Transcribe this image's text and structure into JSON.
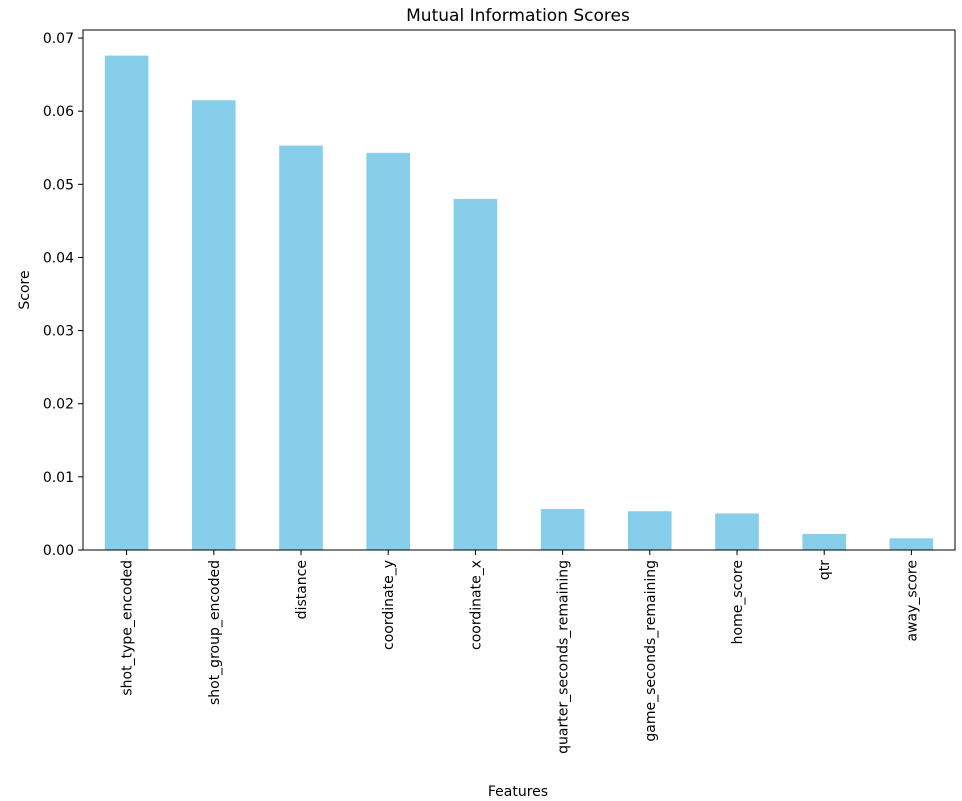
{
  "chart_data": {
    "type": "bar",
    "title": "Mutual Information Scores",
    "xlabel": "Features",
    "ylabel": "Score",
    "categories": [
      "shot_type_encoded",
      "shot_group_encoded",
      "distance",
      "coordinate_y",
      "coordinate_x",
      "quarter_seconds_remaining",
      "game_seconds_remaining",
      "home_score",
      "qtr",
      "away_score"
    ],
    "values": [
      0.0676,
      0.0615,
      0.0553,
      0.0543,
      0.048,
      0.0056,
      0.0053,
      0.005,
      0.0022,
      0.0016
    ],
    "ylim": [
      0,
      0.0711
    ],
    "yticks": [
      0.0,
      0.01,
      0.02,
      0.03,
      0.04,
      0.05,
      0.06,
      0.07
    ],
    "ytick_labels": [
      "0.00",
      "0.01",
      "0.02",
      "0.03",
      "0.04",
      "0.05",
      "0.06",
      "0.07"
    ],
    "bar_color": "#87ceeb",
    "grid": false,
    "legend": "none"
  }
}
